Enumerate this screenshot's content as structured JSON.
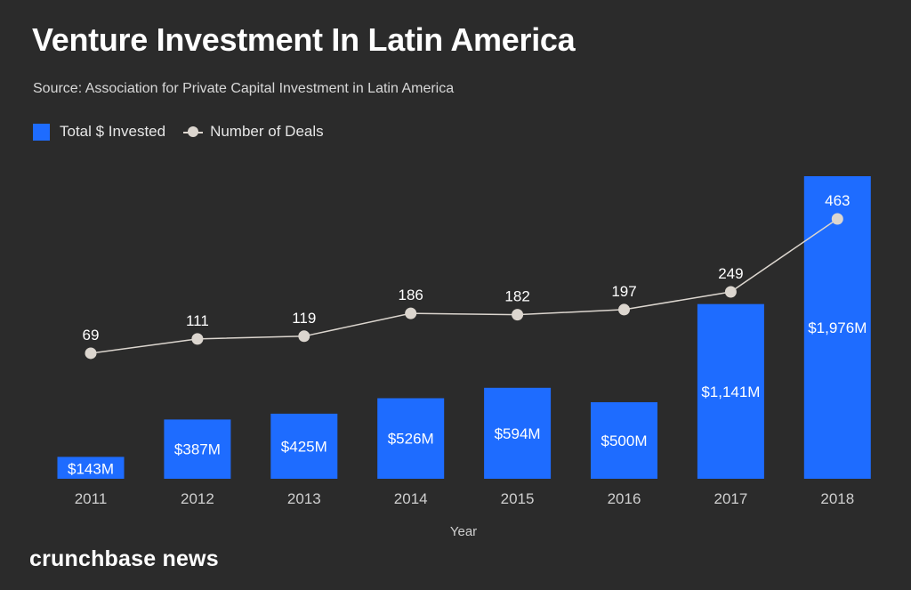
{
  "title": "Venture Investment In Latin America",
  "subtitle": "Source: Association for Private Capital Investment in Latin America",
  "legend": {
    "invested_label": "Total $ Invested",
    "deals_label": "Number of Deals"
  },
  "brand": "crunchbase news",
  "colors": {
    "background": "#2b2b2b",
    "bar": "#1e6cff",
    "line": "#dcd6cf",
    "text": "#ffffff",
    "axis_text": "#cfcfcf"
  },
  "chart_data": {
    "type": "bar",
    "title": "Venture Investment In Latin America",
    "xlabel": "Year",
    "ylabel": "",
    "categories": [
      "2011",
      "2012",
      "2013",
      "2014",
      "2015",
      "2016",
      "2017",
      "2018"
    ],
    "series": [
      {
        "name": "Total $ Invested",
        "type": "bar",
        "unit": "$M",
        "values": [
          143,
          387,
          425,
          526,
          594,
          500,
          1141,
          1976
        ],
        "labels": [
          "$143M",
          "$387M",
          "$425M",
          "$526M",
          "$594M",
          "$500M",
          "$1,141M",
          "$1,976M"
        ]
      },
      {
        "name": "Number of Deals",
        "type": "line",
        "values": [
          69,
          111,
          119,
          186,
          182,
          197,
          249,
          463
        ],
        "labels": [
          "69",
          "111",
          "119",
          "186",
          "182",
          "197",
          "249",
          "463"
        ]
      }
    ],
    "bar_ylim": [
      0,
      1976
    ],
    "grid": false,
    "legend_position": "top-left"
  }
}
